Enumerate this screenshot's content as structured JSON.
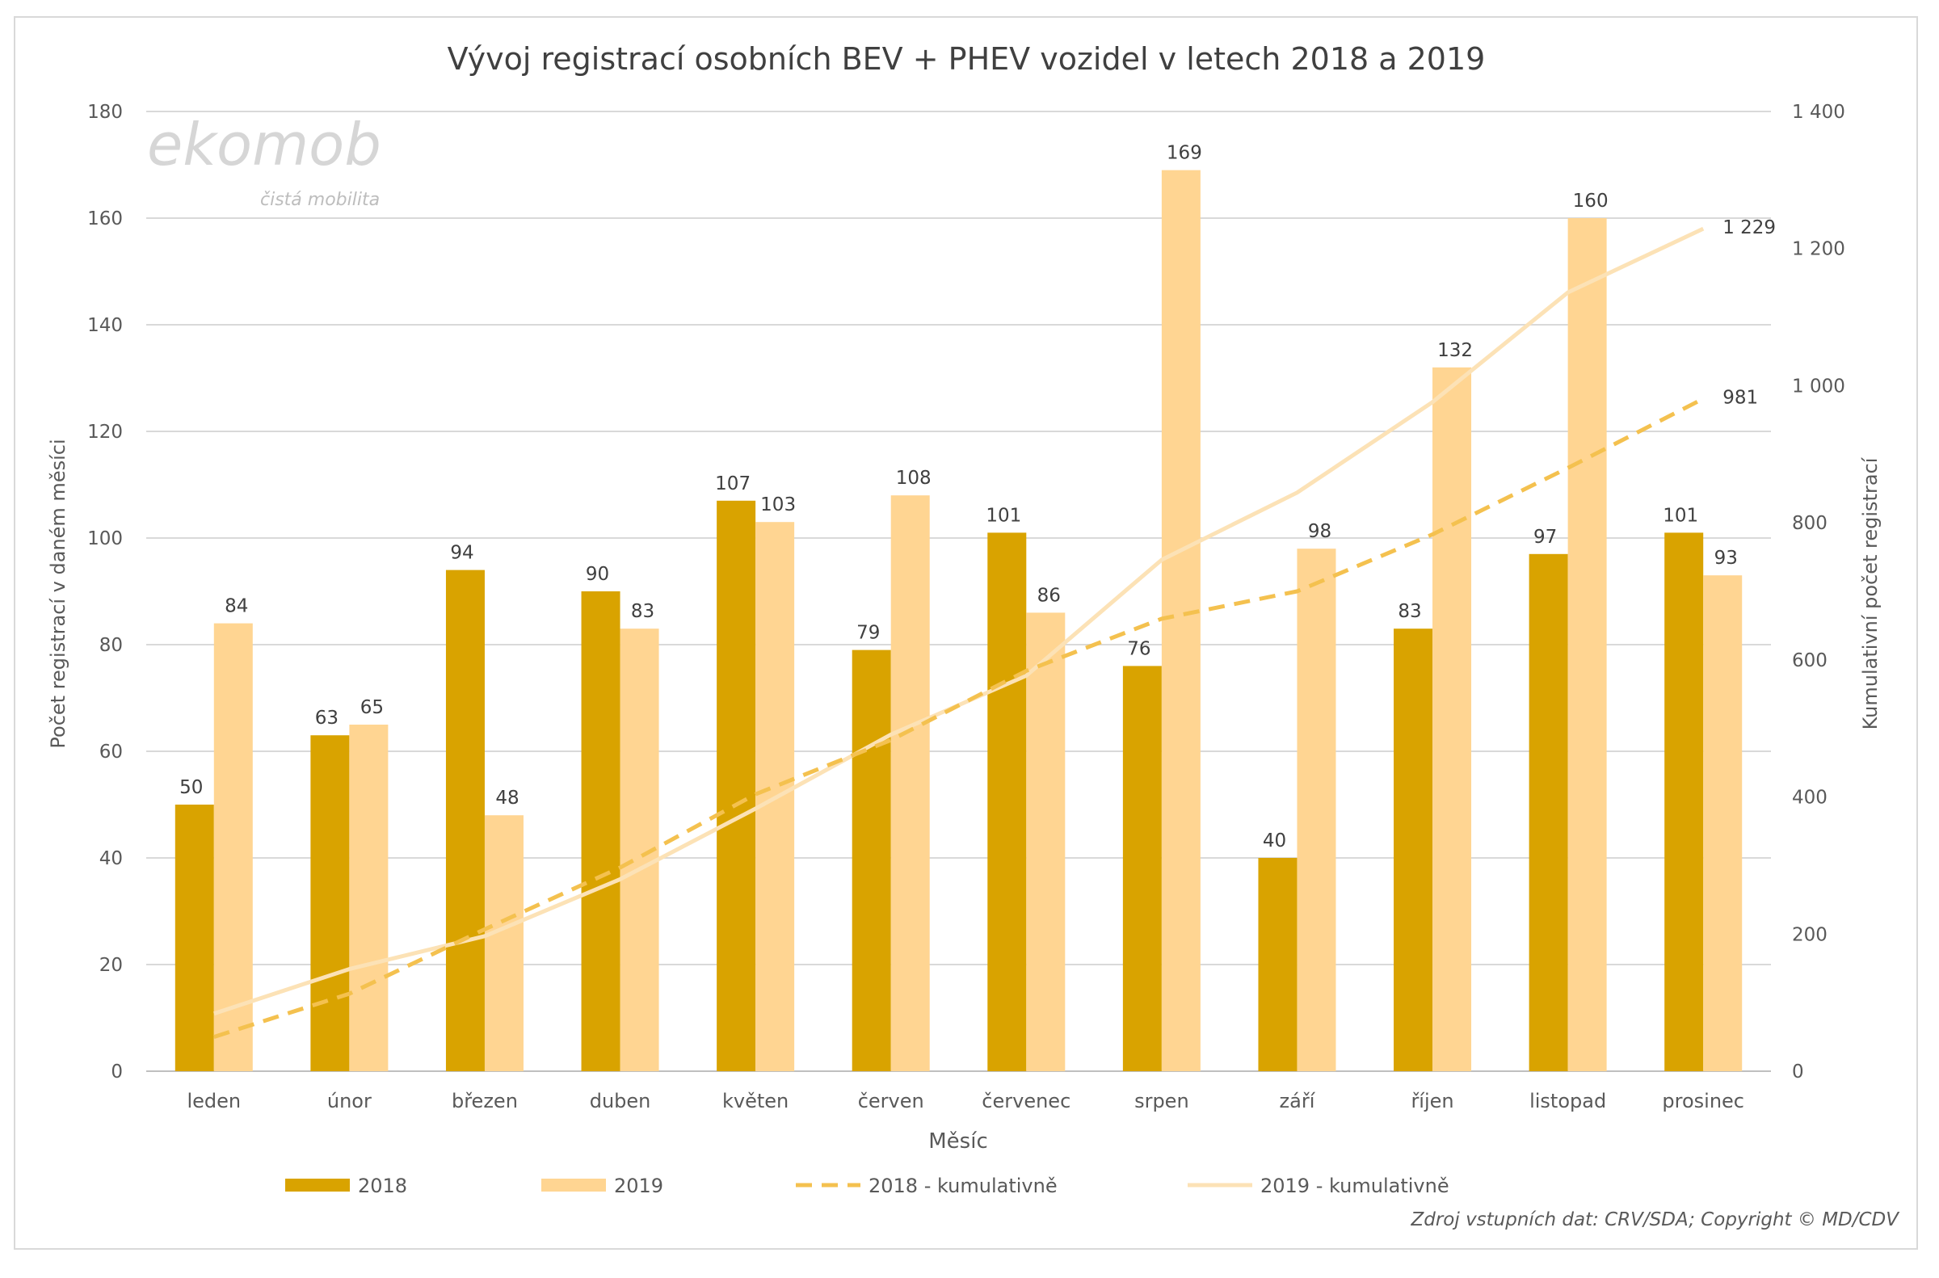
{
  "logo": {
    "text": "ekomob",
    "tagline": "čistá mobilita"
  },
  "source_note": "Zdroj vstupních dat: CRV/SDA; Copyright © MD/CDV",
  "colors": {
    "bar_2018": "#D9A300",
    "bar_2019": "#FFD592",
    "cum_2018": "#F4C14F",
    "cum_2019": "#FCE2B6"
  },
  "chart_data": {
    "type": "bar",
    "title": "Vývoj registrací osobních BEV + PHEV vozidel v letech  2018 a 2019",
    "xlabel": "Měsíc",
    "ylabel": "Počet registrací v daném měsíci",
    "y2label": "Kumulativní počet registrací",
    "ylim": [
      0,
      180
    ],
    "yticks": [
      "0",
      "20",
      "40",
      "60",
      "80",
      "100",
      "120",
      "140",
      "160",
      "180"
    ],
    "y2lim": [
      0,
      1400
    ],
    "y2ticks": [
      "0",
      "200",
      "400",
      "600",
      "800",
      "1 000",
      "1 200",
      "1 400"
    ],
    "grid": true,
    "legend": "bottom",
    "categories": [
      "leden",
      "únor",
      "březen",
      "duben",
      "květen",
      "červen",
      "červenec",
      "srpen",
      "září",
      "říjen",
      "listopad",
      "prosinec"
    ],
    "series": [
      {
        "name": "2018",
        "type": "bar",
        "axis": "left",
        "values": [
          50,
          63,
          94,
          90,
          107,
          79,
          101,
          76,
          40,
          83,
          97,
          101
        ]
      },
      {
        "name": "2019",
        "type": "bar",
        "axis": "left",
        "values": [
          84,
          65,
          48,
          83,
          103,
          108,
          86,
          169,
          98,
          132,
          160,
          93
        ]
      },
      {
        "name": "2018 - kumulativně",
        "type": "line",
        "style": "dashed",
        "axis": "right",
        "values": [
          50,
          113,
          207,
          297,
          404,
          483,
          584,
          660,
          700,
          783,
          880,
          981
        ],
        "end_label": "981"
      },
      {
        "name": "2019 - kumulativně",
        "type": "line",
        "style": "solid",
        "axis": "right",
        "values": [
          84,
          149,
          197,
          280,
          383,
          491,
          577,
          746,
          844,
          976,
          1136,
          1229
        ],
        "end_label": "1 229"
      }
    ]
  }
}
